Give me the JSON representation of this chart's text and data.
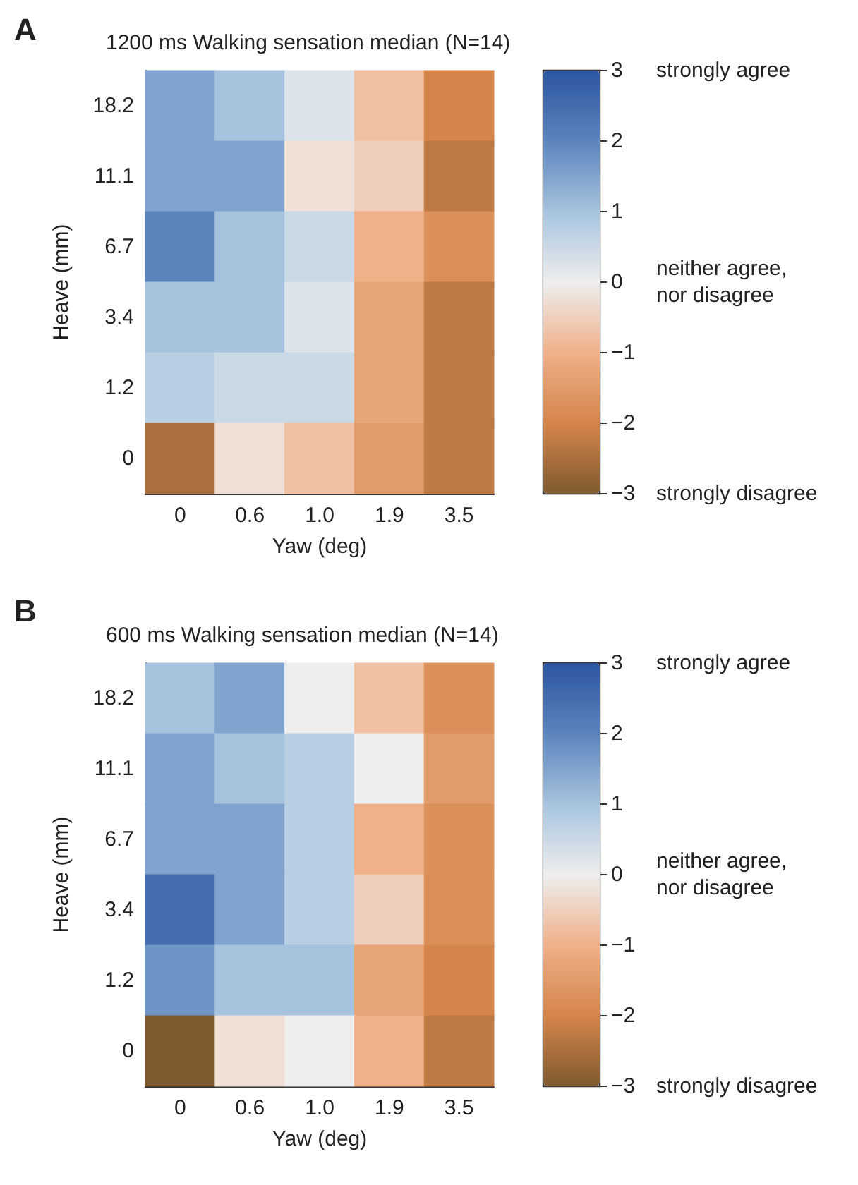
{
  "chart_data": [
    {
      "type": "heatmap",
      "title": "1200 ms Walking sensation median (N=14)",
      "xlabel": "Yaw (deg)",
      "ylabel": "Heave (mm)",
      "categories": [
        "0",
        "0.6",
        "1.0",
        "1.9",
        "3.5"
      ],
      "y_categories": [
        "18.2",
        "11.1",
        "6.7",
        "3.4",
        "1.2",
        "0"
      ],
      "cells": [
        [
          1.5,
          1,
          0.25,
          -0.75,
          -2
        ],
        [
          1.5,
          1.5,
          -0.25,
          -0.5,
          -2.25
        ],
        [
          2,
          1,
          0.5,
          -1,
          -1.75
        ],
        [
          1,
          1,
          0.25,
          -1.25,
          -2.25
        ],
        [
          0.75,
          0.5,
          0.5,
          -1.25,
          -2.25
        ],
        [
          -2.5,
          -0.25,
          -0.75,
          -1.5,
          -2.25
        ]
      ],
      "clim": [
        -3,
        3
      ],
      "cticks": [
        {
          "value": 3,
          "label": "3"
        },
        {
          "value": 2,
          "label": "2"
        },
        {
          "value": 1,
          "label": "1"
        },
        {
          "value": 0,
          "label": "0"
        },
        {
          "value": -1,
          "label": "−1"
        },
        {
          "value": -2,
          "label": "−2"
        },
        {
          "value": -3,
          "label": "−3"
        }
      ],
      "annotations": [
        "A",
        "strongly agree",
        "neither agree,\nnor disagree",
        "strongly disagree"
      ]
    },
    {
      "type": "heatmap",
      "title": "600 ms Walking sensation median (N=14)",
      "xlabel": "Yaw (deg)",
      "ylabel": "Heave (mm)",
      "categories": [
        "0",
        "0.6",
        "1.0",
        "1.9",
        "3.5"
      ],
      "y_categories": [
        "18.2",
        "11.1",
        "6.7",
        "3.4",
        "1.2",
        "0"
      ],
      "cells": [
        [
          1,
          1.5,
          0,
          -0.75,
          -1.75
        ],
        [
          1.5,
          1,
          0.75,
          0,
          -1.5
        ],
        [
          1.5,
          1.5,
          0.75,
          -1,
          -1.75
        ],
        [
          2.5,
          1.5,
          0.75,
          -0.5,
          -1.75
        ],
        [
          1.75,
          1,
          1,
          -1.25,
          -2
        ],
        [
          -3,
          -0.25,
          0,
          -1,
          -2.25
        ]
      ],
      "clim": [
        -3,
        3
      ],
      "cticks": [
        {
          "value": 3,
          "label": "3"
        },
        {
          "value": 2,
          "label": "2"
        },
        {
          "value": 1,
          "label": "1"
        },
        {
          "value": 0,
          "label": "0"
        },
        {
          "value": -1,
          "label": "−1"
        },
        {
          "value": -2,
          "label": "−2"
        },
        {
          "value": -3,
          "label": "−3"
        }
      ],
      "annotations": [
        "B",
        "strongly agree",
        "neither agree,\nnor disagree",
        "strongly disagree"
      ]
    }
  ]
}
